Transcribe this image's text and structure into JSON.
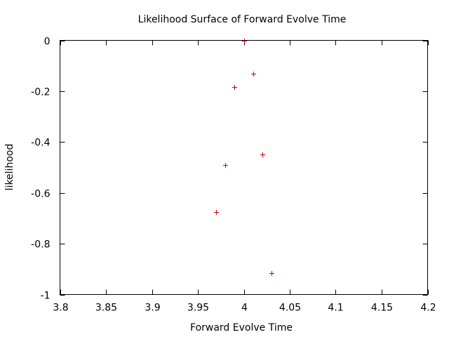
{
  "chart_data": {
    "type": "scatter",
    "title": "Likelihood Surface of Forward Evolve Time",
    "xlabel": "Forward Evolve Time",
    "ylabel": "likelihood",
    "xlim": [
      3.8,
      4.2
    ],
    "ylim": [
      -1,
      0
    ],
    "xticks": [
      3.8,
      3.85,
      3.9,
      3.95,
      4.0,
      4.05,
      4.1,
      4.15,
      4.2
    ],
    "xtick_labels": [
      "3.8",
      "3.85",
      "3.9",
      "3.95",
      "4",
      "4.05",
      "4.1",
      "4.15",
      "4.2"
    ],
    "yticks": [
      0,
      -0.2,
      -0.4,
      -0.6,
      -0.8,
      -1
    ],
    "ytick_labels": [
      "0",
      "-0.2",
      "-0.4",
      "-0.6",
      "-0.8",
      "-1"
    ],
    "grid": false,
    "marker": "+",
    "point_color": "#cc0000",
    "points": [
      {
        "x": 4.0,
        "y": 0
      },
      {
        "x": 4.01,
        "y": -0.13
      },
      {
        "x": 3.99,
        "y": -0.185
      },
      {
        "x": 4.02,
        "y": -0.45
      },
      {
        "x": 3.98,
        "y": -0.49
      },
      {
        "x": 3.97,
        "y": -0.675
      },
      {
        "x": 4.03,
        "y": -0.915
      }
    ]
  }
}
